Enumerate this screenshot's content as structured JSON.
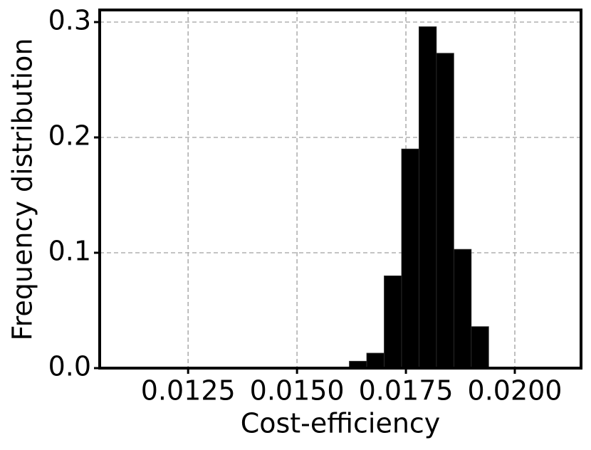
{
  "chart_data": {
    "type": "histogram",
    "xlabel": "Cost-efficiency",
    "ylabel": "Frequency distribution",
    "bins": [
      0.0162,
      0.0166,
      0.017,
      0.0174,
      0.0178,
      0.0182,
      0.0186,
      0.019,
      0.0194
    ],
    "values": [
      0.006,
      0.013,
      0.08,
      0.19,
      0.296,
      0.273,
      0.103,
      0.036
    ],
    "color": "#000000",
    "xlim": [
      0.01047,
      0.02152
    ],
    "xticks": [
      0.0125,
      {
        "value": 0.015,
        "label": "0.0150"
      },
      0.0175,
      {
        "value": 0.02,
        "label": "0.0200"
      }
    ],
    "ylim": [
      0,
      0.3105
    ],
    "yticks": [
      {
        "value": 0,
        "label": "0.0"
      },
      0.1,
      0.2,
      0.3
    ],
    "grid": true
  }
}
